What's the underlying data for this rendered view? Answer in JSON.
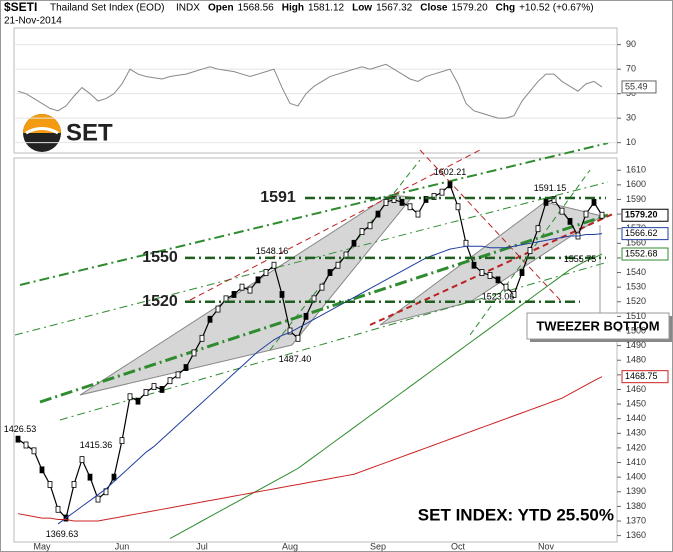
{
  "header": {
    "symbol": "$SETI",
    "name": "Thailand Set Index (EOD)",
    "exchange": "INDX",
    "date": "21-Nov-2014",
    "quote": [
      [
        "Open",
        "1568.56"
      ],
      [
        "High",
        "1581.12"
      ],
      [
        "Low",
        "1567.32"
      ],
      [
        "Close",
        "1579.20"
      ],
      [
        "Chg",
        "+10.52 (+0.67%)"
      ]
    ]
  },
  "logo": {
    "text": "SET"
  },
  "callout": "TWEEZER BOTTOM",
  "footer_note": "SET INDEX: YTD 25.50%",
  "chart_data": [
    {
      "type": "line",
      "name": "rsi",
      "ylim": [
        4,
        102
      ],
      "yticks": [
        90,
        70,
        50,
        30,
        10
      ],
      "color": "#888888",
      "values": [
        52,
        50,
        46,
        42,
        38,
        36,
        40,
        48,
        55,
        50,
        44,
        46,
        50,
        58,
        70,
        66,
        64,
        63,
        62,
        64,
        65,
        66,
        68,
        70,
        72,
        70,
        69,
        68,
        66,
        64,
        66,
        68,
        70,
        55,
        42,
        40,
        50,
        56,
        60,
        64,
        66,
        68,
        70,
        72,
        70,
        72,
        74,
        70,
        66,
        62,
        60,
        64,
        66,
        68,
        70,
        58,
        42,
        36,
        34,
        32,
        30,
        30,
        32,
        44,
        52,
        60,
        66,
        66,
        60,
        56,
        52,
        58,
        60,
        55.49
      ]
    },
    {
      "type": "line",
      "name": "price",
      "ylim": [
        1357,
        1617
      ],
      "yticks": [
        1360,
        1370,
        1380,
        1390,
        1400,
        1410,
        1420,
        1430,
        1440,
        1450,
        1460,
        1470,
        1480,
        1490,
        1500,
        1510,
        1520,
        1530,
        1540,
        1550,
        1560,
        1570,
        1580,
        1590,
        1600,
        1610
      ],
      "categories": [
        null,
        null,
        null,
        "May",
        null,
        null,
        null,
        null,
        null,
        null,
        null,
        null,
        null,
        "Jun",
        null,
        null,
        null,
        null,
        null,
        null,
        null,
        null,
        null,
        "Jul",
        null,
        null,
        null,
        null,
        null,
        null,
        null,
        null,
        null,
        null,
        "Aug",
        null,
        null,
        null,
        null,
        null,
        null,
        null,
        null,
        null,
        null,
        "Sep",
        null,
        null,
        null,
        null,
        null,
        null,
        null,
        null,
        null,
        "Oct",
        null,
        null,
        null,
        null,
        null,
        null,
        null,
        null,
        null,
        null,
        "Nov",
        null,
        null,
        null,
        null,
        null,
        null,
        null
      ],
      "series": [
        {
          "color": "#000000",
          "values": [
            1426,
            1422,
            1418,
            1405,
            1395,
            1378,
            1372,
            1395,
            1412,
            1400,
            1385,
            1390,
            1400,
            1425,
            1455,
            1452,
            1458,
            1462,
            1460,
            1466,
            1470,
            1475,
            1485,
            1495,
            1508,
            1515,
            1522,
            1525,
            1530,
            1528,
            1535,
            1540,
            1545,
            1525,
            1500,
            1495,
            1510,
            1522,
            1530,
            1540,
            1545,
            1552,
            1560,
            1568,
            1572,
            1580,
            1588,
            1590,
            1588,
            1585,
            1580,
            1590,
            1592,
            1595,
            1600,
            1585,
            1560,
            1545,
            1540,
            1538,
            1535,
            1530,
            1525,
            1540,
            1555,
            1570,
            1588,
            1590,
            1582,
            1575,
            1565,
            1580,
            1588,
            1579.2
          ]
        },
        {
          "color": "#1f3f9f",
          "values": [
            null,
            null,
            null,
            null,
            null,
            1368,
            1372,
            1376,
            1380,
            1384,
            1388,
            1392,
            1397,
            1402,
            1407,
            1412,
            1417,
            1421,
            1426,
            1431,
            1436,
            1441,
            1446,
            1451,
            1456,
            1461,
            1466,
            1471,
            1476,
            1481,
            1486,
            1490,
            1494,
            1497,
            1499,
            1502,
            1505,
            1508,
            1511,
            1514,
            1517,
            1520,
            1523,
            1526,
            1529,
            1532,
            1535,
            1538,
            1541,
            1544,
            1547,
            1550,
            1552,
            1554,
            1556,
            1557,
            1558,
            1558,
            1558,
            1557,
            1557,
            1557,
            1558,
            1559,
            1560,
            1561,
            1562,
            1563,
            1564,
            1565,
            1565,
            1566,
            1566,
            1566.62
          ]
        },
        {
          "color": "#2e8b2e",
          "values": [
            null,
            null,
            null,
            null,
            null,
            null,
            null,
            null,
            null,
            null,
            null,
            null,
            null,
            null,
            null,
            null,
            null,
            null,
            null,
            1358,
            1361,
            1364,
            1367,
            1370,
            1373,
            1376,
            1379,
            1382,
            1385,
            1388,
            1391,
            1394,
            1397,
            1400,
            1403,
            1406,
            1410,
            1414,
            1418,
            1422,
            1426,
            1430,
            1434,
            1438,
            1442,
            1446,
            1450,
            1454,
            1458,
            1462,
            1466,
            1470,
            1474,
            1478,
            1482,
            1486,
            1490,
            1494,
            1498,
            1502,
            1506,
            1510,
            1514,
            1518,
            1522,
            1526,
            1530,
            1534,
            1538,
            1542,
            1545,
            1548,
            1550,
            1552.68
          ]
        },
        {
          "color": "#cc2222",
          "values": [
            1375,
            1374,
            1373,
            1372,
            1372,
            1371,
            1371,
            1370,
            1370,
            1370,
            1370,
            1371,
            1372,
            1373,
            1374,
            1375,
            1376,
            1377,
            1378,
            1379,
            1380,
            1381,
            1382,
            1383,
            1384,
            1385,
            1386,
            1387,
            1388,
            1389,
            1390,
            1391,
            1392,
            1393,
            1394,
            1395,
            1396,
            1397,
            1398,
            1399,
            1400,
            1401,
            1402,
            1404,
            1406,
            1408,
            1410,
            1412,
            1414,
            1416,
            1418,
            1420,
            1422,
            1424,
            1426,
            1428,
            1430,
            1432,
            1434,
            1436,
            1438,
            1440,
            1442,
            1444,
            1446,
            1448,
            1450,
            1452,
            1454,
            1457,
            1460,
            1463,
            1466,
            1468.75
          ]
        }
      ],
      "levels": [
        1591,
        1550,
        1520
      ],
      "annotations": [
        1426.53,
        1369.63,
        1415.36,
        1548.16,
        {
          "value": 1487.4,
          "label": "1487.40"
        },
        1602.21,
        1591.15,
        1523.06,
        1555.75
      ],
      "badges": [
        {
          "value": 1579.2,
          "label": "1579.20"
        },
        1566.62,
        1552.68,
        1468.75
      ]
    }
  ]
}
